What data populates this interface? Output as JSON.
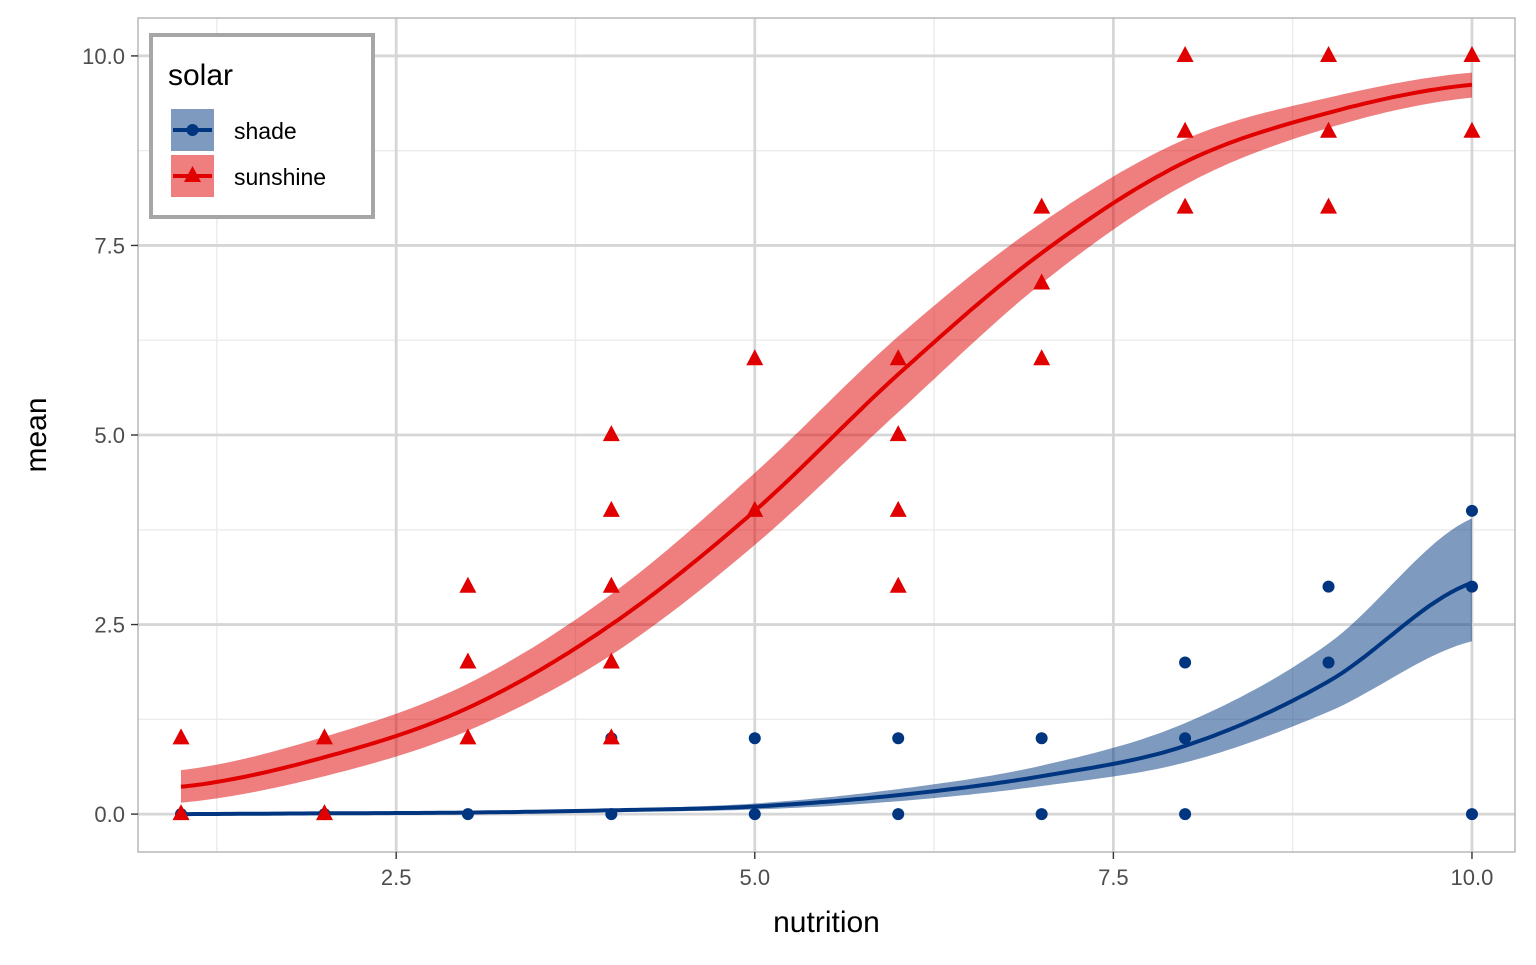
{
  "chart_data": {
    "type": "scatter",
    "xlabel": "nutrition",
    "ylabel": "mean",
    "xlim": [
      0.7,
      10.3
    ],
    "ylim": [
      -0.5,
      10.5
    ],
    "x_ticks": [
      "2.5",
      "5.0",
      "7.5",
      "10.0"
    ],
    "y_ticks": [
      "0.0",
      "2.5",
      "5.0",
      "7.5",
      "10.0"
    ],
    "grid": true,
    "legend": {
      "title": "solar",
      "position": "top-left",
      "entries": [
        "shade",
        "sunshine"
      ]
    },
    "series": [
      {
        "name": "shade",
        "color": "#003580",
        "marker": "circle",
        "points": [
          [
            1,
            0
          ],
          [
            2,
            0
          ],
          [
            3,
            0
          ],
          [
            4,
            0
          ],
          [
            4,
            1
          ],
          [
            5,
            0
          ],
          [
            5,
            1
          ],
          [
            6,
            0
          ],
          [
            6,
            1
          ],
          [
            7,
            0
          ],
          [
            7,
            1
          ],
          [
            8,
            0
          ],
          [
            8,
            1
          ],
          [
            8,
            2
          ],
          [
            9,
            2
          ],
          [
            9,
            3
          ],
          [
            10,
            0
          ],
          [
            10,
            3
          ],
          [
            10,
            4
          ]
        ],
        "fit": {
          "x": [
            1,
            2,
            3,
            4,
            5,
            6,
            7,
            8,
            9,
            10
          ],
          "y": [
            0.0,
            0.01,
            0.02,
            0.05,
            0.1,
            0.25,
            0.5,
            0.9,
            1.75,
            3.05
          ],
          "lower": [
            0.0,
            0.005,
            0.01,
            0.03,
            0.06,
            0.17,
            0.37,
            0.68,
            1.35,
            2.28
          ],
          "upper": [
            0.0,
            0.02,
            0.035,
            0.07,
            0.14,
            0.33,
            0.64,
            1.2,
            2.25,
            3.9
          ]
        }
      },
      {
        "name": "sunshine",
        "color": "#e00000",
        "marker": "triangle",
        "points": [
          [
            1,
            0
          ],
          [
            1,
            1
          ],
          [
            2,
            0
          ],
          [
            2,
            1
          ],
          [
            3,
            1
          ],
          [
            3,
            2
          ],
          [
            3,
            3
          ],
          [
            4,
            1
          ],
          [
            4,
            2
          ],
          [
            4,
            3
          ],
          [
            4,
            4
          ],
          [
            4,
            5
          ],
          [
            5,
            4
          ],
          [
            5,
            6
          ],
          [
            6,
            3
          ],
          [
            6,
            4
          ],
          [
            6,
            5
          ],
          [
            6,
            6
          ],
          [
            7,
            6
          ],
          [
            7,
            7
          ],
          [
            7,
            8
          ],
          [
            8,
            8
          ],
          [
            8,
            9
          ],
          [
            8,
            10
          ],
          [
            9,
            8
          ],
          [
            9,
            9
          ],
          [
            9,
            10
          ],
          [
            10,
            9
          ],
          [
            10,
            10
          ]
        ],
        "fit": {
          "x": [
            1,
            2,
            3,
            4,
            5,
            6,
            7,
            8,
            9,
            10
          ],
          "y": [
            0.36,
            0.75,
            1.4,
            2.5,
            4.0,
            5.8,
            7.4,
            8.6,
            9.25,
            9.62
          ],
          "lower": [
            0.15,
            0.5,
            1.1,
            2.1,
            3.55,
            5.3,
            7.0,
            8.3,
            9.05,
            9.45
          ],
          "upper": [
            0.58,
            1.02,
            1.72,
            2.9,
            4.5,
            6.3,
            7.8,
            8.9,
            9.45,
            9.78
          ]
        }
      }
    ]
  }
}
